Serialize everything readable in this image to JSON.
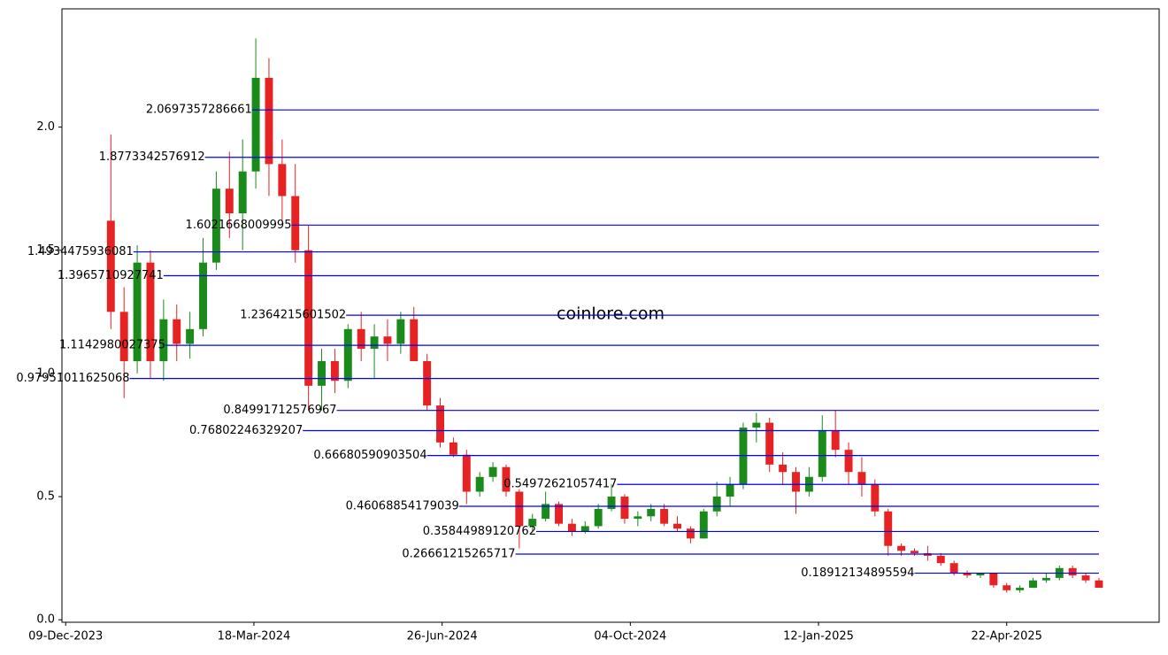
{
  "chart_data": {
    "type": "candlestick",
    "watermark": "coinlore.com",
    "colors": {
      "up": "#1a8a1a",
      "down": "#e62222",
      "level": "#0000ff",
      "watermark": "#44558a"
    },
    "xlim": [
      "07-Dec-2023",
      "12-Jul-2025"
    ],
    "xticks": [
      "09-Dec-2023",
      "18-Mar-2024",
      "26-Jun-2024",
      "04-Oct-2024",
      "12-Jan-2025",
      "22-Apr-2025"
    ],
    "ylim": [
      -0.01,
      2.48
    ],
    "yticks": [
      {
        "value": 0,
        "label": "0.0"
      },
      0.5,
      {
        "value": 1,
        "label": "1.0"
      },
      1.5,
      {
        "value": 2,
        "label": "2.0"
      }
    ],
    "x": [
      "02-Jan-2024",
      "09-Jan-2024",
      "16-Jan-2024",
      "23-Jan-2024",
      "30-Jan-2024",
      "06-Feb-2024",
      "13-Feb-2024",
      "20-Feb-2024",
      "27-Feb-2024",
      "05-Mar-2024",
      "12-Mar-2024",
      "19-Mar-2024",
      "26-Mar-2024",
      "02-Apr-2024",
      "09-Apr-2024",
      "16-Apr-2024",
      "23-Apr-2024",
      "30-Apr-2024",
      "07-May-2024",
      "14-May-2024",
      "21-May-2024",
      "28-May-2024",
      "04-Jun-2024",
      "11-Jun-2024",
      "18-Jun-2024",
      "25-Jun-2024",
      "02-Jul-2024",
      "09-Jul-2024",
      "16-Jul-2024",
      "23-Jul-2024",
      "30-Jul-2024",
      "06-Aug-2024",
      "13-Aug-2024",
      "20-Aug-2024",
      "27-Aug-2024",
      "03-Sep-2024",
      "10-Sep-2024",
      "17-Sep-2024",
      "24-Sep-2024",
      "01-Oct-2024",
      "08-Oct-2024",
      "15-Oct-2024",
      "22-Oct-2024",
      "29-Oct-2024",
      "05-Nov-2024",
      "12-Nov-2024",
      "19-Nov-2024",
      "26-Nov-2024",
      "03-Dec-2024",
      "10-Dec-2024",
      "17-Dec-2024",
      "24-Dec-2024",
      "31-Dec-2024",
      "07-Jan-2025",
      "14-Jan-2025",
      "21-Jan-2025",
      "28-Jan-2025",
      "04-Feb-2025",
      "11-Feb-2025",
      "18-Feb-2025",
      "25-Feb-2025",
      "04-Mar-2025",
      "11-Mar-2025",
      "18-Mar-2025",
      "25-Mar-2025",
      "01-Apr-2025",
      "08-Apr-2025",
      "15-Apr-2025",
      "22-Apr-2025",
      "29-Apr-2025",
      "06-May-2025",
      "13-May-2025",
      "20-May-2025",
      "27-May-2025",
      "03-Jun-2025",
      "10-Jun-2025"
    ],
    "open": [
      1.62,
      1.25,
      1.05,
      1.45,
      1.05,
      1.22,
      1.12,
      1.18,
      1.45,
      1.75,
      1.65,
      1.82,
      2.2,
      1.85,
      1.72,
      1.5,
      0.95,
      1.05,
      0.97,
      1.18,
      1.1,
      1.15,
      1.12,
      1.22,
      1.05,
      0.87,
      0.72,
      0.67,
      0.52,
      0.58,
      0.62,
      0.52,
      0.38,
      0.41,
      0.47,
      0.39,
      0.36,
      0.38,
      0.45,
      0.5,
      0.41,
      0.42,
      0.45,
      0.39,
      0.37,
      0.33,
      0.44,
      0.5,
      0.55,
      0.78,
      0.8,
      0.63,
      0.6,
      0.52,
      0.58,
      0.77,
      0.69,
      0.6,
      0.55,
      0.44,
      0.3,
      0.28,
      0.27,
      0.26,
      0.23,
      0.19,
      0.18,
      0.19,
      0.14,
      0.12,
      0.13,
      0.16,
      0.17,
      0.21,
      0.18,
      0.16
    ],
    "high": [
      1.97,
      1.35,
      1.52,
      1.5,
      1.3,
      1.28,
      1.25,
      1.55,
      1.82,
      1.9,
      1.95,
      2.36,
      2.28,
      1.95,
      1.85,
      1.6,
      1.1,
      1.1,
      1.2,
      1.25,
      1.2,
      1.22,
      1.25,
      1.27,
      1.08,
      0.9,
      0.74,
      0.69,
      0.6,
      0.64,
      0.63,
      0.53,
      0.43,
      0.52,
      0.48,
      0.41,
      0.4,
      0.47,
      0.55,
      0.51,
      0.44,
      0.47,
      0.47,
      0.42,
      0.38,
      0.45,
      0.56,
      0.58,
      0.8,
      0.84,
      0.82,
      0.68,
      0.62,
      0.62,
      0.83,
      0.85,
      0.72,
      0.66,
      0.57,
      0.45,
      0.31,
      0.29,
      0.3,
      0.27,
      0.24,
      0.2,
      0.19,
      0.19,
      0.15,
      0.14,
      0.17,
      0.19,
      0.22,
      0.22,
      0.19,
      0.17
    ],
    "low": [
      1.18,
      0.9,
      1.0,
      0.98,
      0.97,
      1.05,
      1.06,
      1.15,
      1.42,
      1.55,
      1.5,
      1.75,
      1.72,
      1.62,
      1.45,
      0.85,
      0.85,
      0.92,
      0.94,
      1.05,
      0.98,
      1.05,
      1.08,
      1.05,
      0.85,
      0.7,
      0.66,
      0.47,
      0.5,
      0.56,
      0.5,
      0.29,
      0.36,
      0.4,
      0.38,
      0.34,
      0.35,
      0.37,
      0.44,
      0.39,
      0.38,
      0.4,
      0.38,
      0.36,
      0.31,
      0.33,
      0.42,
      0.46,
      0.53,
      0.72,
      0.6,
      0.55,
      0.43,
      0.5,
      0.56,
      0.66,
      0.55,
      0.5,
      0.42,
      0.26,
      0.26,
      0.26,
      0.24,
      0.22,
      0.18,
      0.17,
      0.17,
      0.13,
      0.11,
      0.11,
      0.13,
      0.15,
      0.16,
      0.17,
      0.15,
      0.13
    ],
    "close": [
      1.25,
      1.05,
      1.45,
      1.05,
      1.22,
      1.12,
      1.18,
      1.45,
      1.75,
      1.65,
      1.82,
      2.2,
      1.85,
      1.72,
      1.5,
      0.95,
      1.05,
      0.97,
      1.18,
      1.1,
      1.15,
      1.12,
      1.22,
      1.05,
      0.87,
      0.72,
      0.67,
      0.52,
      0.58,
      0.62,
      0.52,
      0.38,
      0.41,
      0.47,
      0.39,
      0.36,
      0.38,
      0.45,
      0.5,
      0.41,
      0.42,
      0.45,
      0.39,
      0.37,
      0.33,
      0.44,
      0.5,
      0.55,
      0.78,
      0.8,
      0.63,
      0.6,
      0.52,
      0.58,
      0.77,
      0.69,
      0.6,
      0.55,
      0.44,
      0.3,
      0.28,
      0.27,
      0.26,
      0.23,
      0.19,
      0.18,
      0.19,
      0.14,
      0.12,
      0.13,
      0.16,
      0.17,
      0.21,
      0.18,
      0.16,
      0.13
    ],
    "levels": [
      {
        "value": 2.0697357286661,
        "start": "17-Mar-2024"
      },
      {
        "value": 1.8773342576912,
        "start": "21-Feb-2024"
      },
      {
        "value": 1.6021668009995,
        "start": "07-Apr-2024"
      },
      {
        "value": 1.4934475936081,
        "start": "14-Jan-2024"
      },
      {
        "value": 1.3965710927741,
        "start": "30-Jan-2024"
      },
      {
        "value": 1.2364215601502,
        "start": "06-May-2024"
      },
      {
        "value": 1.1142980027375,
        "start": "31-Jan-2024"
      },
      {
        "value": 0.97951011625068,
        "start": "12-Jan-2024"
      },
      {
        "value": 0.84991712576967,
        "start": "01-May-2024"
      },
      {
        "value": 0.76802246329207,
        "start": "13-Apr-2024"
      },
      {
        "value": 0.66680590903504,
        "start": "18-Jun-2024"
      },
      {
        "value": 0.54972621057417,
        "start": "27-Sep-2024"
      },
      {
        "value": 0.46068854179039,
        "start": "05-Jul-2024"
      },
      {
        "value": 0.35844989120762,
        "start": "15-Aug-2024"
      },
      {
        "value": 0.26661215265717,
        "start": "04-Aug-2024"
      },
      {
        "value": 0.18912134895594,
        "start": "04-Mar-2025"
      }
    ]
  }
}
